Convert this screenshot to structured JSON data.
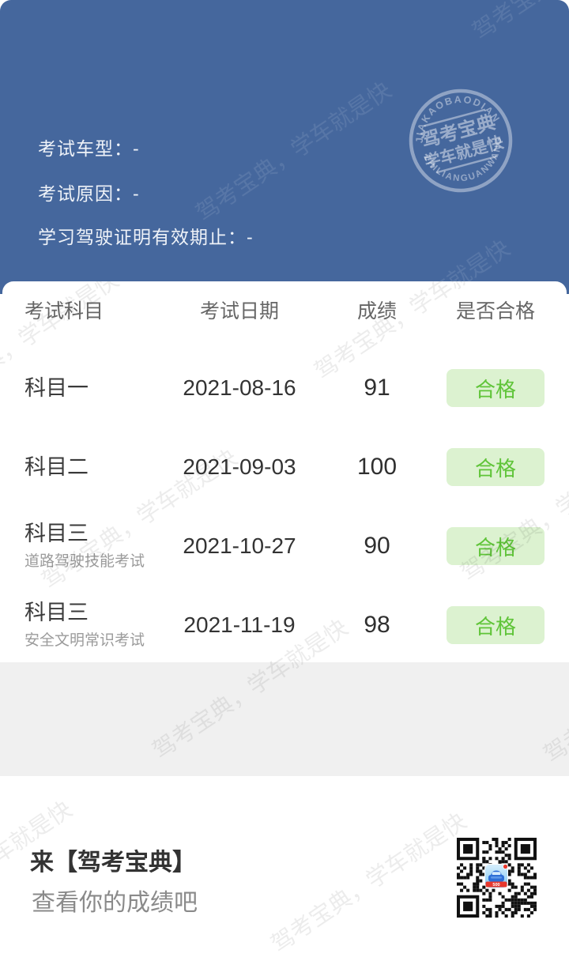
{
  "certificate": {
    "fields": [
      "考试车型：-",
      "考试原因：-",
      "学习驾驶证明有效期止：-"
    ]
  },
  "stamp": {
    "arc_top": "JIAKAOBAODIAN",
    "line1": "驾考宝典",
    "line2": "学车就是快",
    "arc_bottom": "ZHILIANGUANWANG"
  },
  "watermark": {
    "text": "驾考宝典，学车就是快"
  },
  "table": {
    "headers": [
      "考试科目",
      "考试日期",
      "成绩",
      "是否合格"
    ],
    "rows": [
      {
        "subject": "科目一",
        "subtitle": "",
        "date": "2021-08-16",
        "score": "91",
        "result": "合格"
      },
      {
        "subject": "科目二",
        "subtitle": "",
        "date": "2021-09-03",
        "score": "100",
        "result": "合格"
      },
      {
        "subject": "科目三",
        "subtitle": "道路驾驶技能考试",
        "date": "2021-10-27",
        "score": "90",
        "result": "合格"
      },
      {
        "subject": "科目三",
        "subtitle": "安全文明常识考试",
        "date": "2021-11-19",
        "score": "98",
        "result": "合格"
      }
    ]
  },
  "footer": {
    "title": "来【驾考宝典】",
    "subtitle": "查看你的成绩吧",
    "qr_badge": "500"
  },
  "colors": {
    "primary_blue": "#45679d",
    "pass_green": "#5fc438",
    "pass_green_bg": "#dcf2d0",
    "band_gray": "#f0f0f0"
  }
}
